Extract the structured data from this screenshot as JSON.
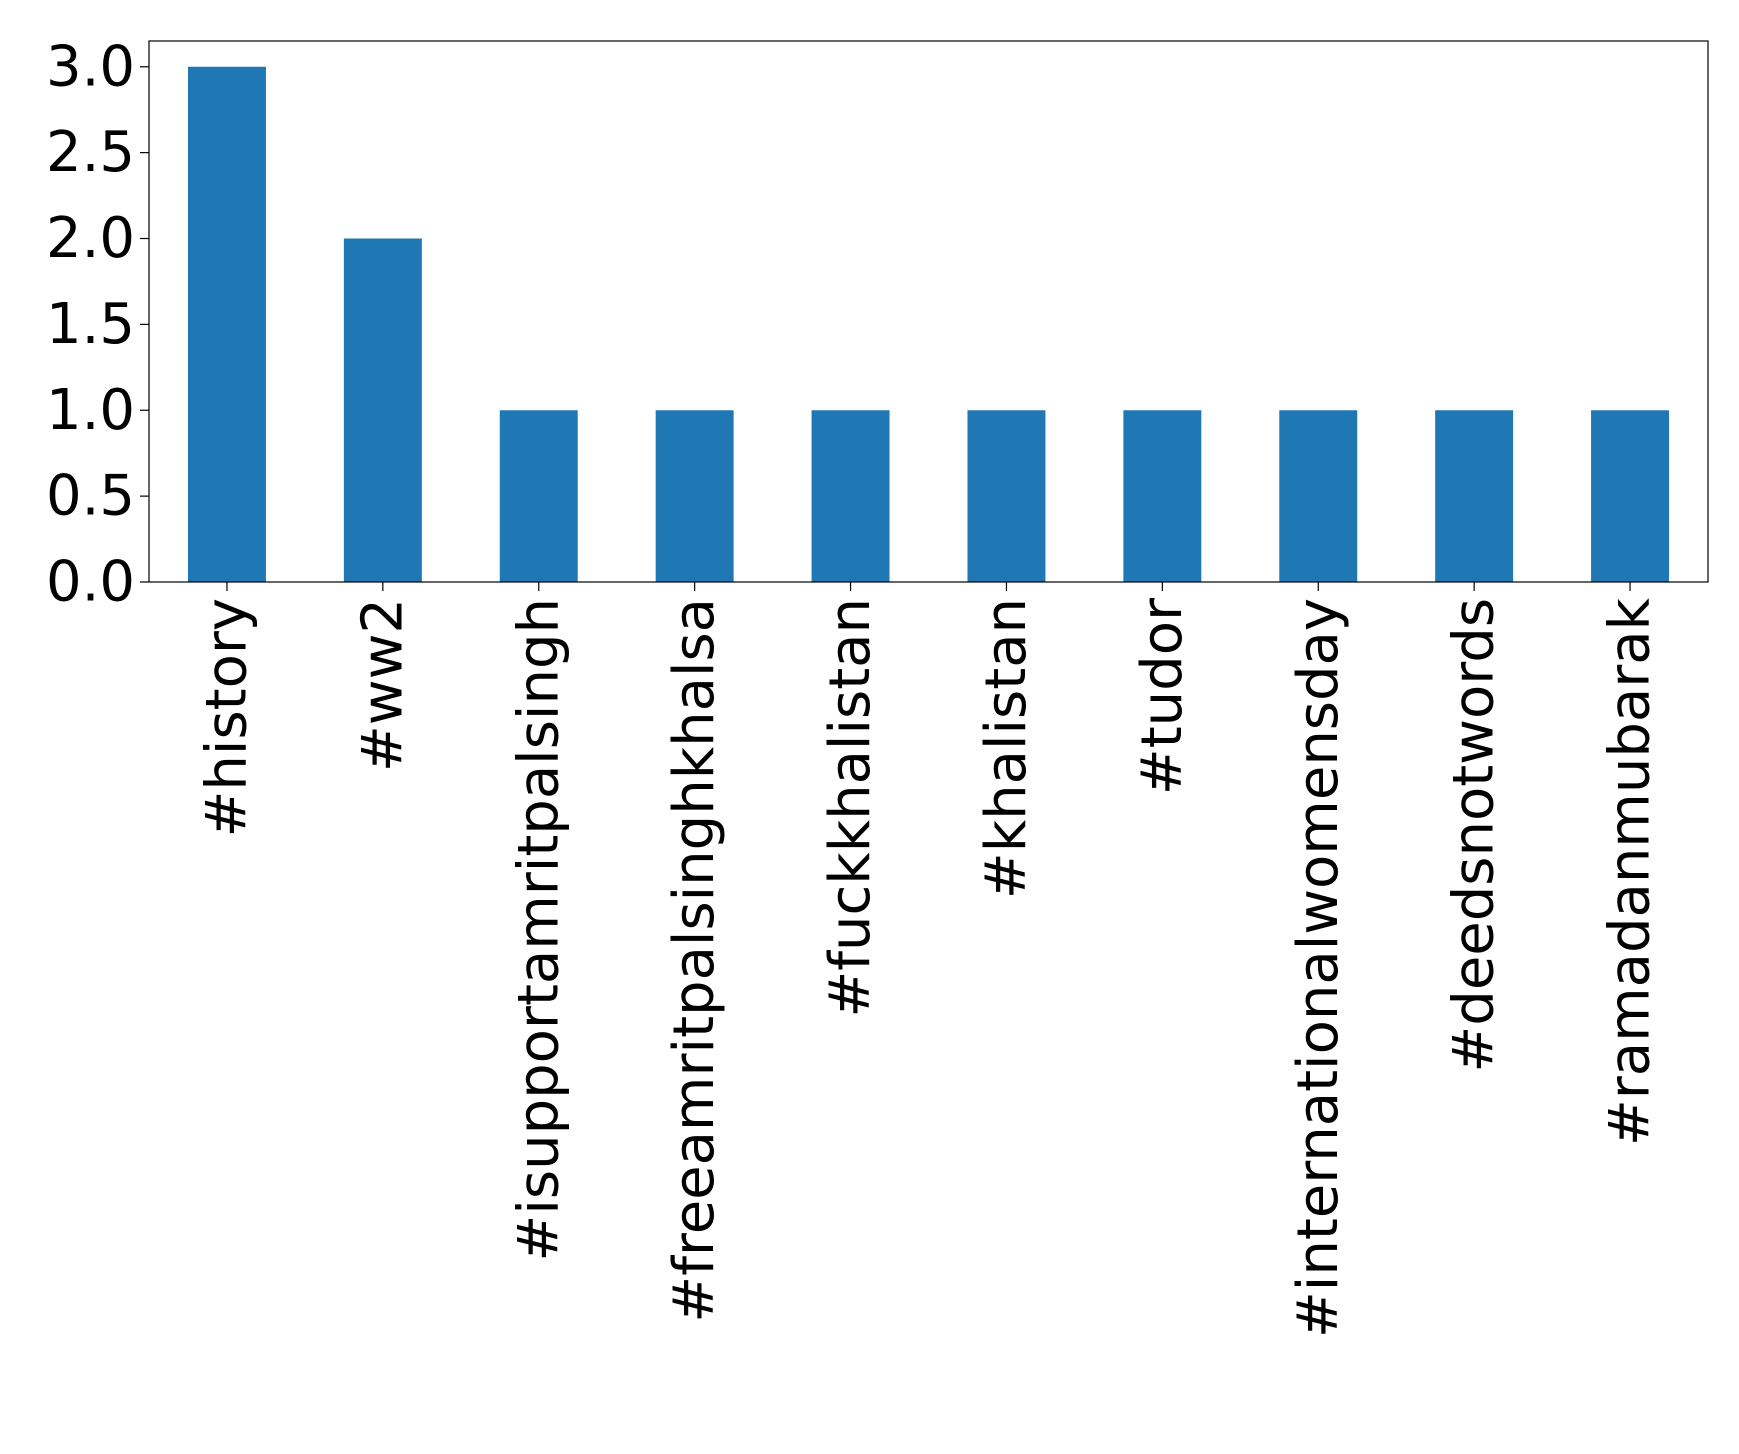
{
  "chart_data": {
    "type": "bar",
    "categories": [
      "#history",
      "#ww2",
      "#isupportamritpalsingh",
      "#freeamritpalsinghkhalsa",
      "#fuckkhalistan",
      "#khalistan",
      "#tudor",
      "#internationalwomensday",
      "#deedsnotwords",
      "#ramadanmubarak"
    ],
    "values": [
      3,
      2,
      1,
      1,
      1,
      1,
      1,
      1,
      1,
      1
    ],
    "color": "#1f77b4",
    "ylim": [
      0,
      3.15
    ],
    "yticks": [
      {
        "value": 0,
        "label": "0.0"
      },
      {
        "value": 0.5,
        "label": "0.5"
      },
      {
        "value": 1,
        "label": "1.0"
      },
      {
        "value": 1.5,
        "label": "1.5"
      },
      {
        "value": 2,
        "label": "2.0"
      },
      {
        "value": 2.5,
        "label": "2.5"
      },
      {
        "value": 3,
        "label": "3.0"
      }
    ],
    "grid": false
  }
}
